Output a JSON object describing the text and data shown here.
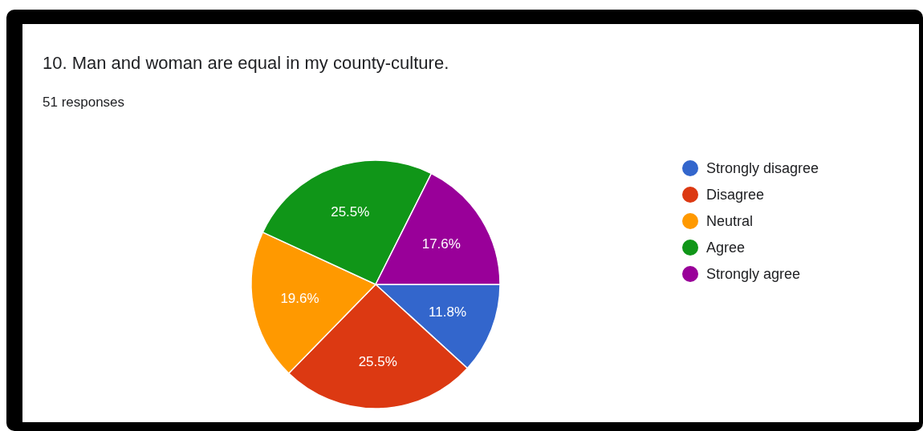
{
  "chart_data": {
    "type": "pie",
    "title": "10. Man and woman are equal in my county-culture.",
    "subtitle": "51 responses",
    "categories": [
      "Strongly disagree",
      "Disagree",
      "Neutral",
      "Agree",
      "Strongly agree"
    ],
    "values": [
      11.8,
      25.5,
      19.6,
      25.5,
      17.6
    ],
    "colors": [
      "#3366cc",
      "#dc3912",
      "#ff9900",
      "#109618",
      "#990099"
    ],
    "value_labels": [
      "11.8%",
      "25.5%",
      "19.6%",
      "25.5%",
      "17.6%"
    ],
    "legend": "right"
  }
}
